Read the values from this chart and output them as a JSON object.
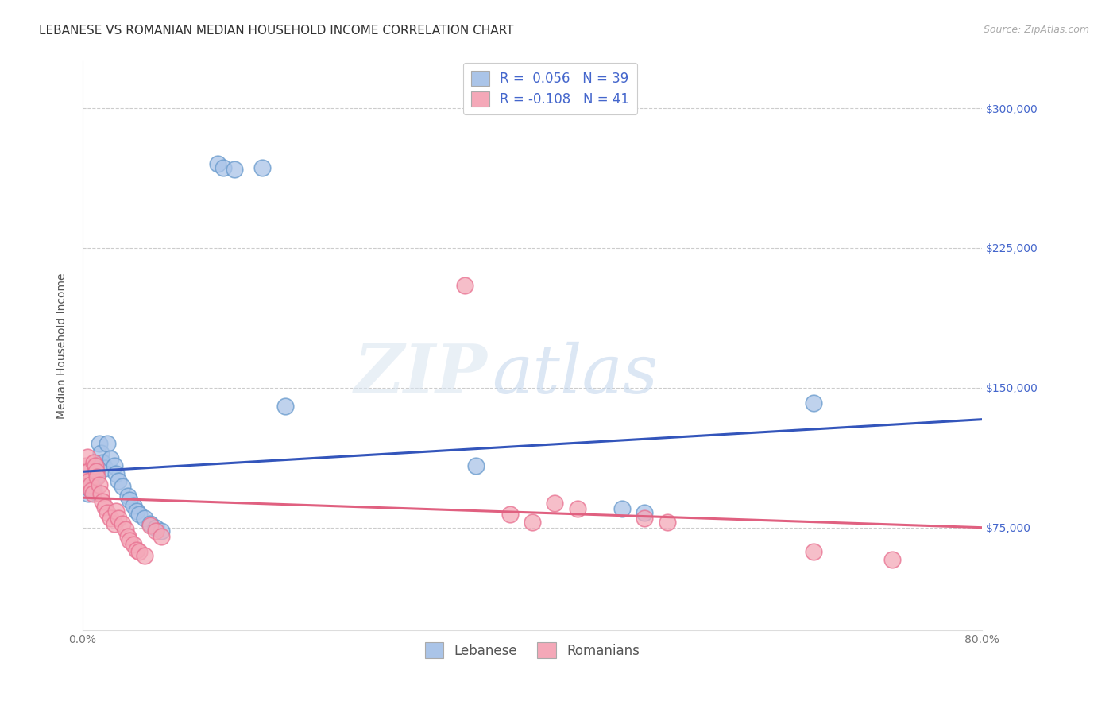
{
  "title": "LEBANESE VS ROMANIAN MEDIAN HOUSEHOLD INCOME CORRELATION CHART",
  "source": "Source: ZipAtlas.com",
  "ylabel": "Median Household Income",
  "xlim": [
    0,
    0.8
  ],
  "ylim": [
    20000,
    325000
  ],
  "background_color": "#ffffff",
  "grid_color": "#cccccc",
  "watermark_zip": "ZIP",
  "watermark_atlas": "atlas",
  "lebanese_color": "#aac4e8",
  "lebanese_edge_color": "#6699cc",
  "romanian_color": "#f4a8b8",
  "romanian_edge_color": "#e87090",
  "lebanese_line_color": "#3355bb",
  "romanian_line_color": "#e06080",
  "legend_color": "#4466cc",
  "lebanese_scatter": [
    [
      0.003,
      100000
    ],
    [
      0.004,
      97000
    ],
    [
      0.005,
      93000
    ],
    [
      0.006,
      96000
    ],
    [
      0.007,
      102000
    ],
    [
      0.008,
      99000
    ],
    [
      0.009,
      97000
    ],
    [
      0.01,
      95000
    ],
    [
      0.011,
      108000
    ],
    [
      0.012,
      105000
    ],
    [
      0.013,
      103000
    ],
    [
      0.015,
      120000
    ],
    [
      0.016,
      115000
    ],
    [
      0.018,
      110000
    ],
    [
      0.02,
      107000
    ],
    [
      0.022,
      120000
    ],
    [
      0.025,
      112000
    ],
    [
      0.028,
      108000
    ],
    [
      0.03,
      104000
    ],
    [
      0.032,
      100000
    ],
    [
      0.035,
      97000
    ],
    [
      0.04,
      92000
    ],
    [
      0.042,
      90000
    ],
    [
      0.045,
      87000
    ],
    [
      0.048,
      84000
    ],
    [
      0.05,
      82000
    ],
    [
      0.055,
      80000
    ],
    [
      0.06,
      77000
    ],
    [
      0.065,
      75000
    ],
    [
      0.07,
      73000
    ],
    [
      0.12,
      270000
    ],
    [
      0.125,
      268000
    ],
    [
      0.135,
      267000
    ],
    [
      0.16,
      268000
    ],
    [
      0.18,
      140000
    ],
    [
      0.35,
      108000
    ],
    [
      0.48,
      85000
    ],
    [
      0.5,
      83000
    ],
    [
      0.65,
      142000
    ]
  ],
  "romanian_scatter": [
    [
      0.002,
      100000
    ],
    [
      0.003,
      108000
    ],
    [
      0.004,
      113000
    ],
    [
      0.005,
      105000
    ],
    [
      0.006,
      100000
    ],
    [
      0.007,
      98000
    ],
    [
      0.008,
      95000
    ],
    [
      0.009,
      93000
    ],
    [
      0.01,
      110000
    ],
    [
      0.011,
      108000
    ],
    [
      0.012,
      105000
    ],
    [
      0.013,
      102000
    ],
    [
      0.015,
      98000
    ],
    [
      0.016,
      93000
    ],
    [
      0.018,
      89000
    ],
    [
      0.02,
      86000
    ],
    [
      0.022,
      83000
    ],
    [
      0.025,
      80000
    ],
    [
      0.028,
      77000
    ],
    [
      0.03,
      84000
    ],
    [
      0.032,
      80000
    ],
    [
      0.035,
      77000
    ],
    [
      0.038,
      74000
    ],
    [
      0.04,
      70000
    ],
    [
      0.042,
      68000
    ],
    [
      0.045,
      66000
    ],
    [
      0.048,
      63000
    ],
    [
      0.05,
      62000
    ],
    [
      0.055,
      60000
    ],
    [
      0.06,
      76000
    ],
    [
      0.065,
      73000
    ],
    [
      0.07,
      70000
    ],
    [
      0.34,
      205000
    ],
    [
      0.38,
      82000
    ],
    [
      0.4,
      78000
    ],
    [
      0.42,
      88000
    ],
    [
      0.44,
      85000
    ],
    [
      0.5,
      80000
    ],
    [
      0.52,
      78000
    ],
    [
      0.65,
      62000
    ],
    [
      0.72,
      58000
    ]
  ],
  "leb_line_x0": 0.0,
  "leb_line_y0": 105000,
  "leb_line_x1": 0.8,
  "leb_line_y1": 133000,
  "rom_line_x0": 0.0,
  "rom_line_y0": 91000,
  "rom_line_x1": 0.8,
  "rom_line_y1": 75000,
  "title_fontsize": 11,
  "axis_label_fontsize": 10,
  "tick_fontsize": 10,
  "legend_fontsize": 12
}
